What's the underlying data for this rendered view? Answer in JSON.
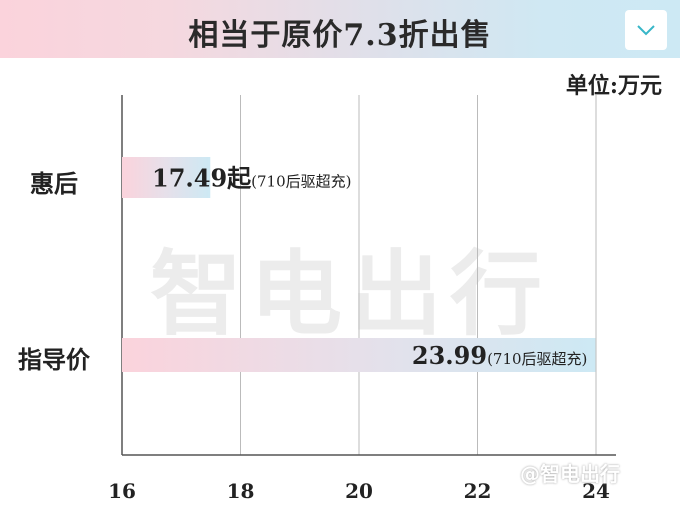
{
  "header": {
    "title": "相当于原价7.3折出售",
    "toggle_icon": "chevron-down-icon"
  },
  "watermark": "智电出行",
  "watermark_corner": "@智电出行",
  "chart_data": {
    "type": "bar",
    "orientation": "horizontal",
    "title": "相当于原价7.3折出售",
    "unit_label": "单位:万元",
    "categories": [
      "惠后",
      "指导价"
    ],
    "values": [
      17.49,
      23.99
    ],
    "data_labels": [
      {
        "value": "17.49起",
        "note": "(710后驱超充)"
      },
      {
        "value": "23.99",
        "note": "(710后驱超充)"
      }
    ],
    "xlim": [
      16,
      24
    ],
    "xticks": [
      "16",
      "18",
      "20",
      "22",
      "24"
    ],
    "grid": true,
    "bar_gradient": [
      "#fbd3dc",
      "#cde9f4"
    ]
  }
}
